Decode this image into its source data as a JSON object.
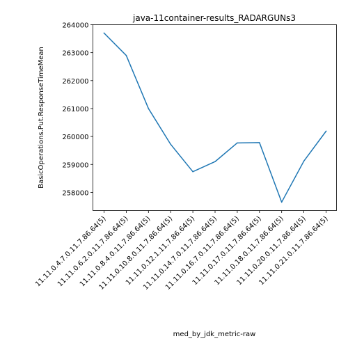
{
  "chart_data": {
    "type": "line",
    "title": "java-11container-results_RADARGUNs3",
    "xlabel": "med_by_jdk_metric-raw",
    "ylabel": "BasicOperations.Put.ResponseTimeMean",
    "categories": [
      "11.11.0.4.7.0.11.7.86.64(5)",
      "11.11.0.6.2.0.11.7.86.64(5)",
      "11.11.0.8.4.0.11.7.86.64(5)",
      "11.11.0.10.8.0.11.7.86.64(5)",
      "11.11.0.12.1.11.7.86.64(5)",
      "11.11.0.14.7.0.11.7.86.64(5)",
      "11.11.0.16.7.0.11.7.86.64(5)",
      "11.11.0.17.0.11.7.86.64(5)",
      "11.11.0.18.0.11.7.86.64(5)",
      "11.11.0.20.0.11.7.86.64(5)",
      "11.11.0.21.0.11.7.86.64(5)"
    ],
    "series": [
      {
        "values": [
          263700,
          262900,
          261000,
          259720,
          258740,
          259100,
          259770,
          259780,
          257650,
          259120,
          260190
        ],
        "color": "#1f77b4"
      }
    ],
    "ylim": [
      257350,
      264000
    ],
    "yticks": [
      258000,
      259000,
      260000,
      261000,
      262000,
      263000,
      264000
    ],
    "ytick_labels": [
      "258000",
      "259000",
      "260000",
      "261000",
      "262000",
      "263000",
      "264000"
    ],
    "grid": false,
    "legend": "none"
  }
}
